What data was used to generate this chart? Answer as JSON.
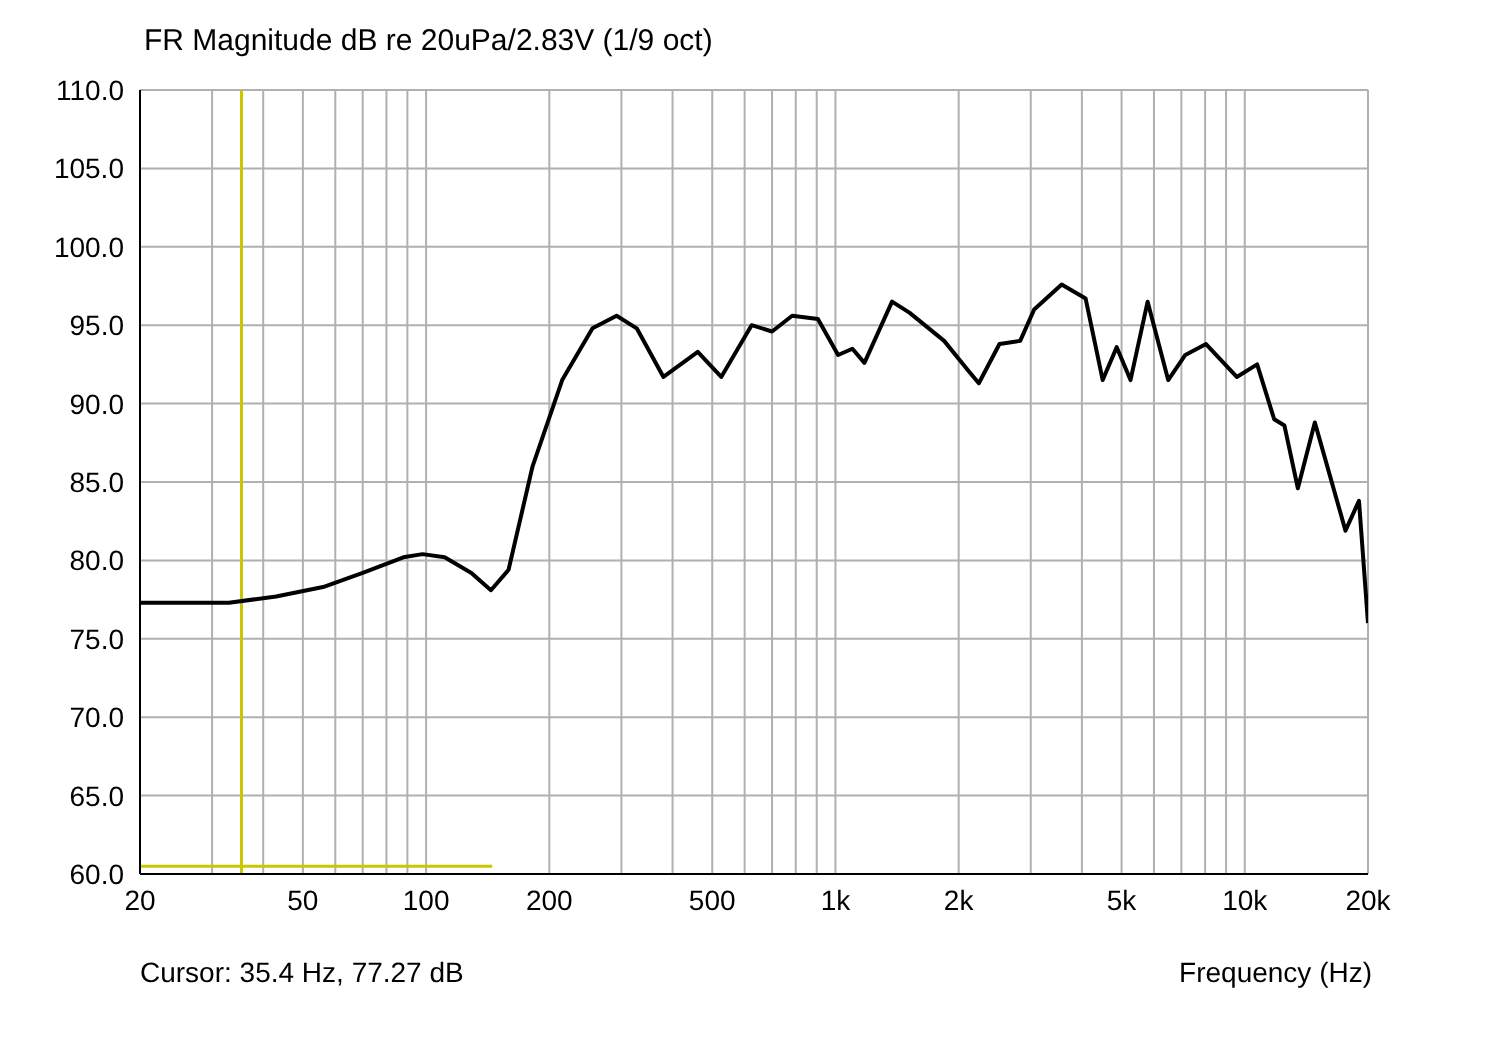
{
  "chart_data": {
    "type": "line",
    "title": "FR Magnitude dB re 20uPa/2.83V (1/9 oct)",
    "xlabel": "Frequency (Hz)",
    "annotations": [
      "Cursor: 35.4 Hz, 77.27 dB"
    ],
    "log": "x",
    "grid": true,
    "marker": "none",
    "line_style": "solid",
    "xlim": [
      20,
      20000
    ],
    "ylim": [
      60,
      110
    ],
    "xticks": [
      20,
      {
        "value": 30,
        "label": null
      },
      {
        "value": 40,
        "label": null
      },
      50,
      {
        "value": 60,
        "label": null
      },
      {
        "value": 70,
        "label": null
      },
      {
        "value": 80,
        "label": null
      },
      {
        "value": 90,
        "label": null
      },
      100,
      200,
      {
        "value": 300,
        "label": null
      },
      {
        "value": 400,
        "label": null
      },
      500,
      {
        "value": 600,
        "label": null
      },
      {
        "value": 700,
        "label": null
      },
      {
        "value": 800,
        "label": null
      },
      {
        "value": 900,
        "label": null
      },
      {
        "value": 1000,
        "label": "1k"
      },
      {
        "value": 2000,
        "label": "2k"
      },
      {
        "value": 3000,
        "label": null
      },
      {
        "value": 4000,
        "label": null
      },
      {
        "value": 5000,
        "label": "5k"
      },
      {
        "value": 6000,
        "label": null
      },
      {
        "value": 7000,
        "label": null
      },
      {
        "value": 8000,
        "label": null
      },
      {
        "value": 9000,
        "label": null
      },
      {
        "value": 10000,
        "label": "10k"
      },
      {
        "value": 20000,
        "label": "20k"
      }
    ],
    "yticks": [
      {
        "value": 60,
        "label": "60.0"
      },
      {
        "value": 65,
        "label": "65.0"
      },
      {
        "value": 70,
        "label": "70.0"
      },
      {
        "value": 75,
        "label": "75.0"
      },
      {
        "value": 80,
        "label": "80.0"
      },
      {
        "value": 85,
        "label": "85.0"
      },
      {
        "value": 90,
        "label": "90.0"
      },
      {
        "value": 95,
        "label": "95.0"
      },
      {
        "value": 100,
        "label": "100.0"
      },
      {
        "value": 105,
        "label": "105.0"
      },
      {
        "value": 110,
        "label": "110.0"
      }
    ],
    "ref_lines": [
      {
        "axis": "x",
        "value": 35.4,
        "color": "#c8c800"
      }
    ],
    "series": [
      {
        "color": "#000000",
        "x": [
          20,
          33,
          43,
          56,
          70,
          88,
          98,
          111,
          129,
          144,
          159,
          182,
          215,
          255,
          292,
          327,
          380,
          461,
          526,
          624,
          700,
          784,
          906,
          1015,
          1100,
          1177,
          1375,
          1516,
          1843,
          2112,
          2240,
          2516,
          2827,
          3058,
          3570,
          4085,
          4497,
          4866,
          5258,
          5790,
          6500,
          7157,
          8040,
          9560,
          10720,
          11800,
          12500,
          13480,
          14830,
          17620,
          19010,
          20000
        ],
        "values": [
          77.3,
          77.3,
          77.7,
          78.3,
          79.2,
          80.2,
          80.4,
          80.2,
          79.2,
          78.1,
          79.4,
          86.0,
          91.5,
          94.8,
          95.6,
          94.8,
          91.7,
          93.3,
          91.7,
          95.0,
          94.6,
          95.6,
          95.4,
          93.1,
          93.5,
          92.6,
          96.5,
          95.8,
          94.0,
          92.1,
          91.3,
          93.8,
          94.0,
          96.0,
          97.6,
          96.7,
          91.5,
          93.6,
          91.5,
          96.5,
          91.5,
          93.1,
          93.8,
          91.7,
          92.5,
          89.0,
          88.6,
          84.6,
          88.8,
          81.9,
          83.8,
          76.0
        ]
      },
      {
        "color": "#c8c800",
        "x": [
          20,
          145
        ],
        "values": [
          60.5,
          60.5
        ]
      }
    ]
  }
}
